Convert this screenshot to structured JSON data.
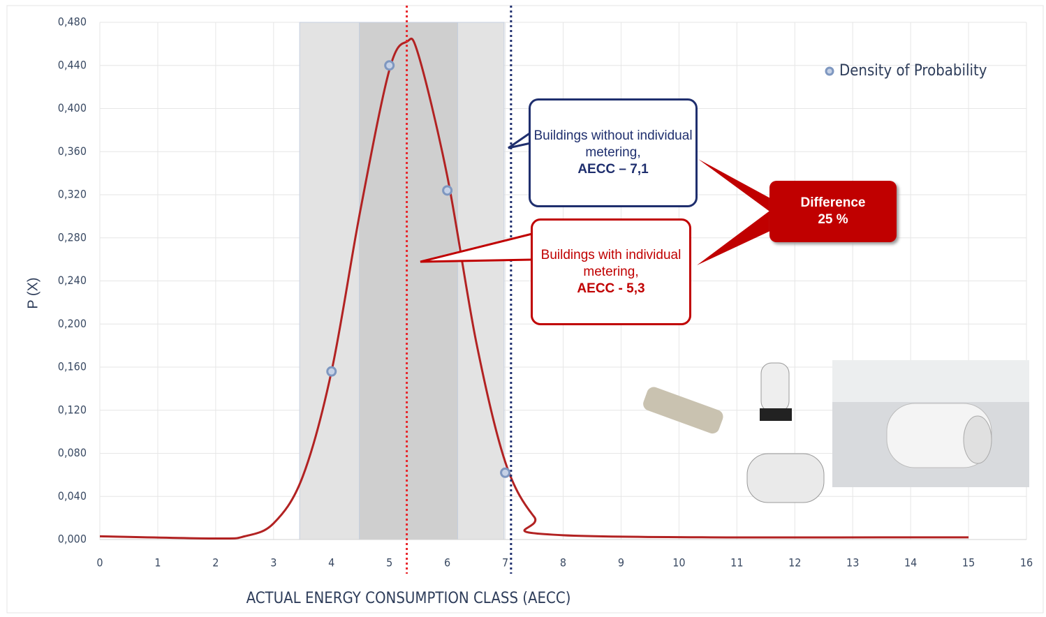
{
  "chart_data": {
    "type": "scatter",
    "x_label": "ACTUAL ENERGY CONSUMPTION CLASS (AECC)",
    "y_label": "P (X)",
    "xlim": [
      0,
      16
    ],
    "xticks": [
      0,
      1,
      2,
      3,
      4,
      5,
      6,
      7,
      8,
      9,
      10,
      11,
      12,
      13,
      14,
      15,
      16
    ],
    "ylim": [
      0,
      0.48
    ],
    "yticks": [
      {
        "value": 0,
        "label": "0,000"
      },
      {
        "value": 0.04,
        "label": "0,040"
      },
      {
        "value": 0.08,
        "label": "0,080"
      },
      {
        "value": 0.12,
        "label": "0,120"
      },
      {
        "value": 0.16,
        "label": "0,160"
      },
      {
        "value": 0.2,
        "label": "0,200"
      },
      {
        "value": 0.24,
        "label": "0,240"
      },
      {
        "value": 0.28,
        "label": "0,280"
      },
      {
        "value": 0.32,
        "label": "0,320"
      },
      {
        "value": 0.36,
        "label": "0,360"
      },
      {
        "value": 0.4,
        "label": "0,400"
      },
      {
        "value": 0.44,
        "label": "0,440"
      },
      {
        "value": 0.48,
        "label": "0,480"
      }
    ],
    "grid": true,
    "legend": "top-right",
    "bands": [
      {
        "x": [
          3.45,
          6.98
        ],
        "color": "#e3e3e3"
      },
      {
        "x": [
          4.48,
          6.18
        ],
        "color": "#cfcfcf"
      }
    ],
    "series": [
      {
        "name": "Density of Probability",
        "color": "#7e97c0",
        "x": [
          4,
          5,
          6,
          7
        ],
        "values": [
          0.156,
          0.44,
          0.324,
          0.062
        ]
      },
      {
        "type": "line",
        "color": "#b22222",
        "x": [
          0,
          2,
          2.5,
          3,
          3.5,
          4,
          4.5,
          5,
          5.3,
          5.5,
          6,
          6.5,
          7,
          7.5,
          8,
          15
        ],
        "values": [
          0.003,
          0.001,
          0.003,
          0.015,
          0.058,
          0.156,
          0.306,
          0.436,
          0.462,
          0.45,
          0.337,
          0.183,
          0.072,
          0.021,
          0.004,
          0.002
        ]
      }
    ],
    "vlines": [
      {
        "x": 5.3,
        "color": "#e8262b"
      },
      {
        "x": 7.1,
        "color": "#1f2f6e"
      }
    ],
    "annotations": {
      "without": {
        "text": "Buildings without individual metering,",
        "bold": "AECC – 7,1"
      },
      "with": {
        "text": "Buildings with individual metering,",
        "bold": "AECC - 5,3"
      },
      "difference": {
        "title": "Difference",
        "value": "25 %"
      }
    }
  }
}
